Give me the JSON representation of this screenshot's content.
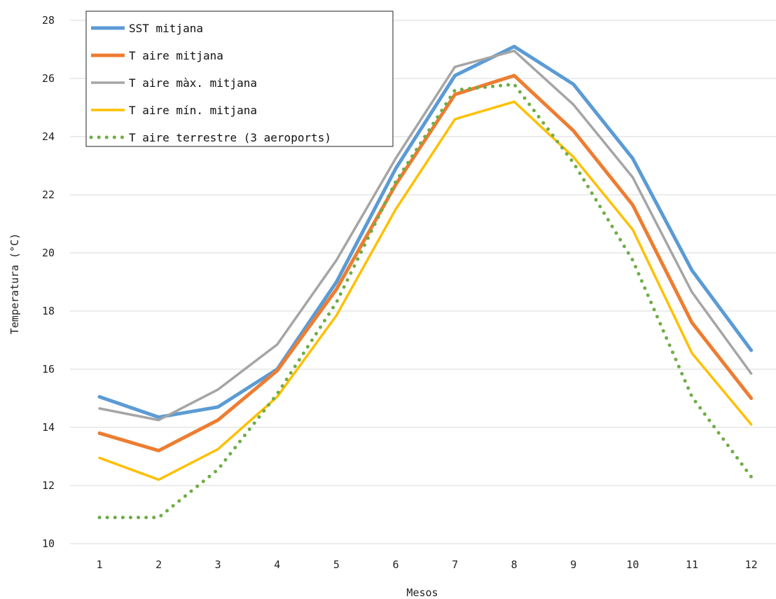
{
  "chart_data": {
    "type": "line",
    "title": "",
    "xlabel": "Mesos",
    "ylabel": "Temperatura (°C)",
    "x": [
      1,
      2,
      3,
      4,
      5,
      6,
      7,
      8,
      9,
      10,
      11,
      12
    ],
    "ylim": [
      10,
      28
    ],
    "yticks": [
      10,
      12,
      14,
      16,
      18,
      20,
      22,
      24,
      26,
      28
    ],
    "grid": "horizontal",
    "legend_position": "top-left",
    "series": [
      {
        "name": "SST mitjana",
        "color": "#5b9bd5",
        "style": "solid",
        "values": [
          15.05,
          14.35,
          14.7,
          16.0,
          19.0,
          22.9,
          26.1,
          27.1,
          25.8,
          23.25,
          19.4,
          16.65
        ]
      },
      {
        "name": "T aire mitjana",
        "color": "#ed7d31",
        "style": "solid",
        "values": [
          13.8,
          13.2,
          14.25,
          15.95,
          18.75,
          22.35,
          25.45,
          26.1,
          24.2,
          21.65,
          17.6,
          15.0
        ]
      },
      {
        "name": "T aire màx. mitjana",
        "color": "#a5a5a5",
        "style": "solid",
        "values": [
          14.65,
          14.25,
          15.3,
          16.85,
          19.75,
          23.25,
          26.4,
          26.95,
          25.1,
          22.6,
          18.65,
          15.85
        ]
      },
      {
        "name": "T aire mín. mitjana",
        "color": "#ffc000",
        "style": "solid",
        "values": [
          12.95,
          12.2,
          13.25,
          15.05,
          17.85,
          21.5,
          24.6,
          25.2,
          23.3,
          20.8,
          16.55,
          14.1
        ]
      },
      {
        "name": "T aire terrestre (3 aeroports)",
        "color": "#70ad47",
        "style": "dotted",
        "values": [
          10.9,
          10.9,
          12.55,
          15.15,
          18.3,
          22.45,
          25.6,
          25.8,
          23.1,
          19.75,
          15.05,
          12.3
        ]
      }
    ]
  }
}
